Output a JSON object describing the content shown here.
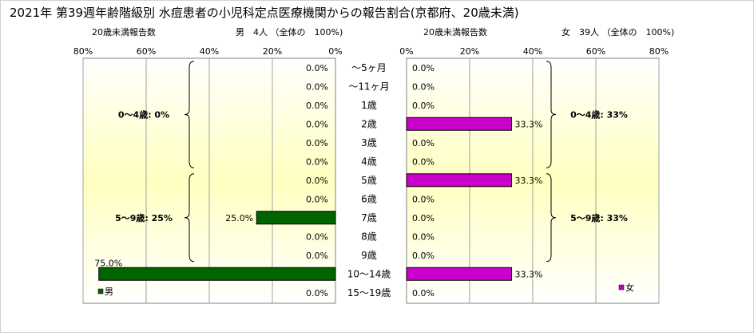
{
  "title": "2021年 第39週年齢階級別 水痘患者の小児科定点医療機関からの報告割合(京都府、20歳未満)",
  "categories": [
    "～5ヶ月",
    "～11ヶ月",
    "1歳",
    "2歳",
    "3歳",
    "4歳",
    "5歳",
    "6歳",
    "7歳",
    "8歳",
    "9歳",
    "10～14歳",
    "15～19歳"
  ],
  "colors": {
    "male": "#006400",
    "female": "#cc00cc",
    "plot_fill_edge": "#ffffff",
    "plot_fill_center": "#ffffc0"
  },
  "chart_data": [
    {
      "type": "bar",
      "orientation": "horizontal",
      "direction": "right-to-left",
      "header_left": "20歳未満報告数",
      "header_right": "男　4人 （全体の　100%)",
      "categories": [
        "～5ヶ月",
        "～11ヶ月",
        "1歳",
        "2歳",
        "3歳",
        "4歳",
        "5歳",
        "6歳",
        "7歳",
        "8歳",
        "9歳",
        "10～14歳",
        "15～19歳"
      ],
      "series": [
        {
          "name": "男",
          "color": "#006400",
          "values": [
            0,
            0,
            0,
            0,
            0,
            0,
            0,
            0,
            25.0,
            0,
            0,
            75.0,
            0
          ],
          "labels": [
            "0.0%",
            "0.0%",
            "0.0%",
            "0.0%",
            "0.0%",
            "0.0%",
            "0.0%",
            "0.0%",
            "25.0%",
            "0.0%",
            "0.0%",
            "75.0%",
            "0.0%"
          ]
        }
      ],
      "xlim": [
        0,
        80
      ],
      "ticks": [
        "80%",
        "60%",
        "40%",
        "20%",
        "0%"
      ],
      "tick_values": [
        80,
        60,
        40,
        20,
        0
      ],
      "groups": [
        {
          "label": "0～4歳: 0%",
          "from": 0,
          "to": 5
        },
        {
          "label": "5～9歳: 25%",
          "from": 6,
          "to": 10
        }
      ],
      "legend": "bottom-left"
    },
    {
      "type": "bar",
      "orientation": "horizontal",
      "direction": "left-to-right",
      "header_left": "20歳未満報告数",
      "header_right": "女　39人 （全体の　100%)",
      "categories": [
        "～5ヶ月",
        "～11ヶ月",
        "1歳",
        "2歳",
        "3歳",
        "4歳",
        "5歳",
        "6歳",
        "7歳",
        "8歳",
        "9歳",
        "10～14歳",
        "15～19歳"
      ],
      "series": [
        {
          "name": "女",
          "color": "#cc00cc",
          "values": [
            0,
            0,
            0,
            33.3,
            0,
            0,
            33.3,
            0,
            0,
            0,
            0,
            33.3,
            0
          ],
          "labels": [
            "0.0%",
            "0.0%",
            "0.0%",
            "33.3%",
            "0.0%",
            "0.0%",
            "33.3%",
            "0.0%",
            "0.0%",
            "0.0%",
            "0.0%",
            "33.3%",
            "0.0%"
          ]
        }
      ],
      "xlim": [
        0,
        80
      ],
      "ticks": [
        "0%",
        "20%",
        "40%",
        "60%",
        "80%"
      ],
      "tick_values": [
        0,
        20,
        40,
        60,
        80
      ],
      "groups": [
        {
          "label": "0～4歳: 33%",
          "from": 0,
          "to": 5
        },
        {
          "label": "5～9歳: 33%",
          "from": 6,
          "to": 10
        }
      ],
      "legend": "bottom-right"
    }
  ]
}
